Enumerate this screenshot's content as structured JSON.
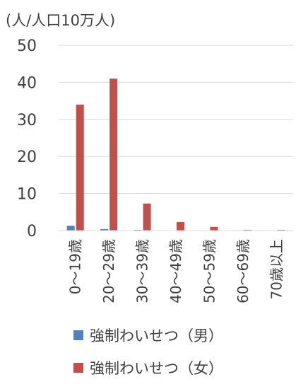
{
  "chart_data": {
    "type": "bar",
    "ylabel": "(人/人口10万人)",
    "ylim": [
      0,
      50
    ],
    "yticks": [
      0,
      10,
      20,
      30,
      40,
      50
    ],
    "categories": [
      "0～19歳",
      "20～29歳",
      "30～39歳",
      "40～49歳",
      "50～59歳",
      "60～69歳",
      "70歳以上"
    ],
    "series": [
      {
        "name": "強制わいせつ（男）",
        "color": "#4F81BD",
        "values": [
          1.3,
          0.4,
          0.2,
          0.0,
          0.0,
          0.0,
          0.0
        ]
      },
      {
        "name": "強制わいせつ（女）",
        "color": "#C0504D",
        "values": [
          34.0,
          41.0,
          7.3,
          2.3,
          1.0,
          0.2,
          0.2
        ]
      }
    ],
    "grid": true,
    "legend_position": "bottom"
  }
}
